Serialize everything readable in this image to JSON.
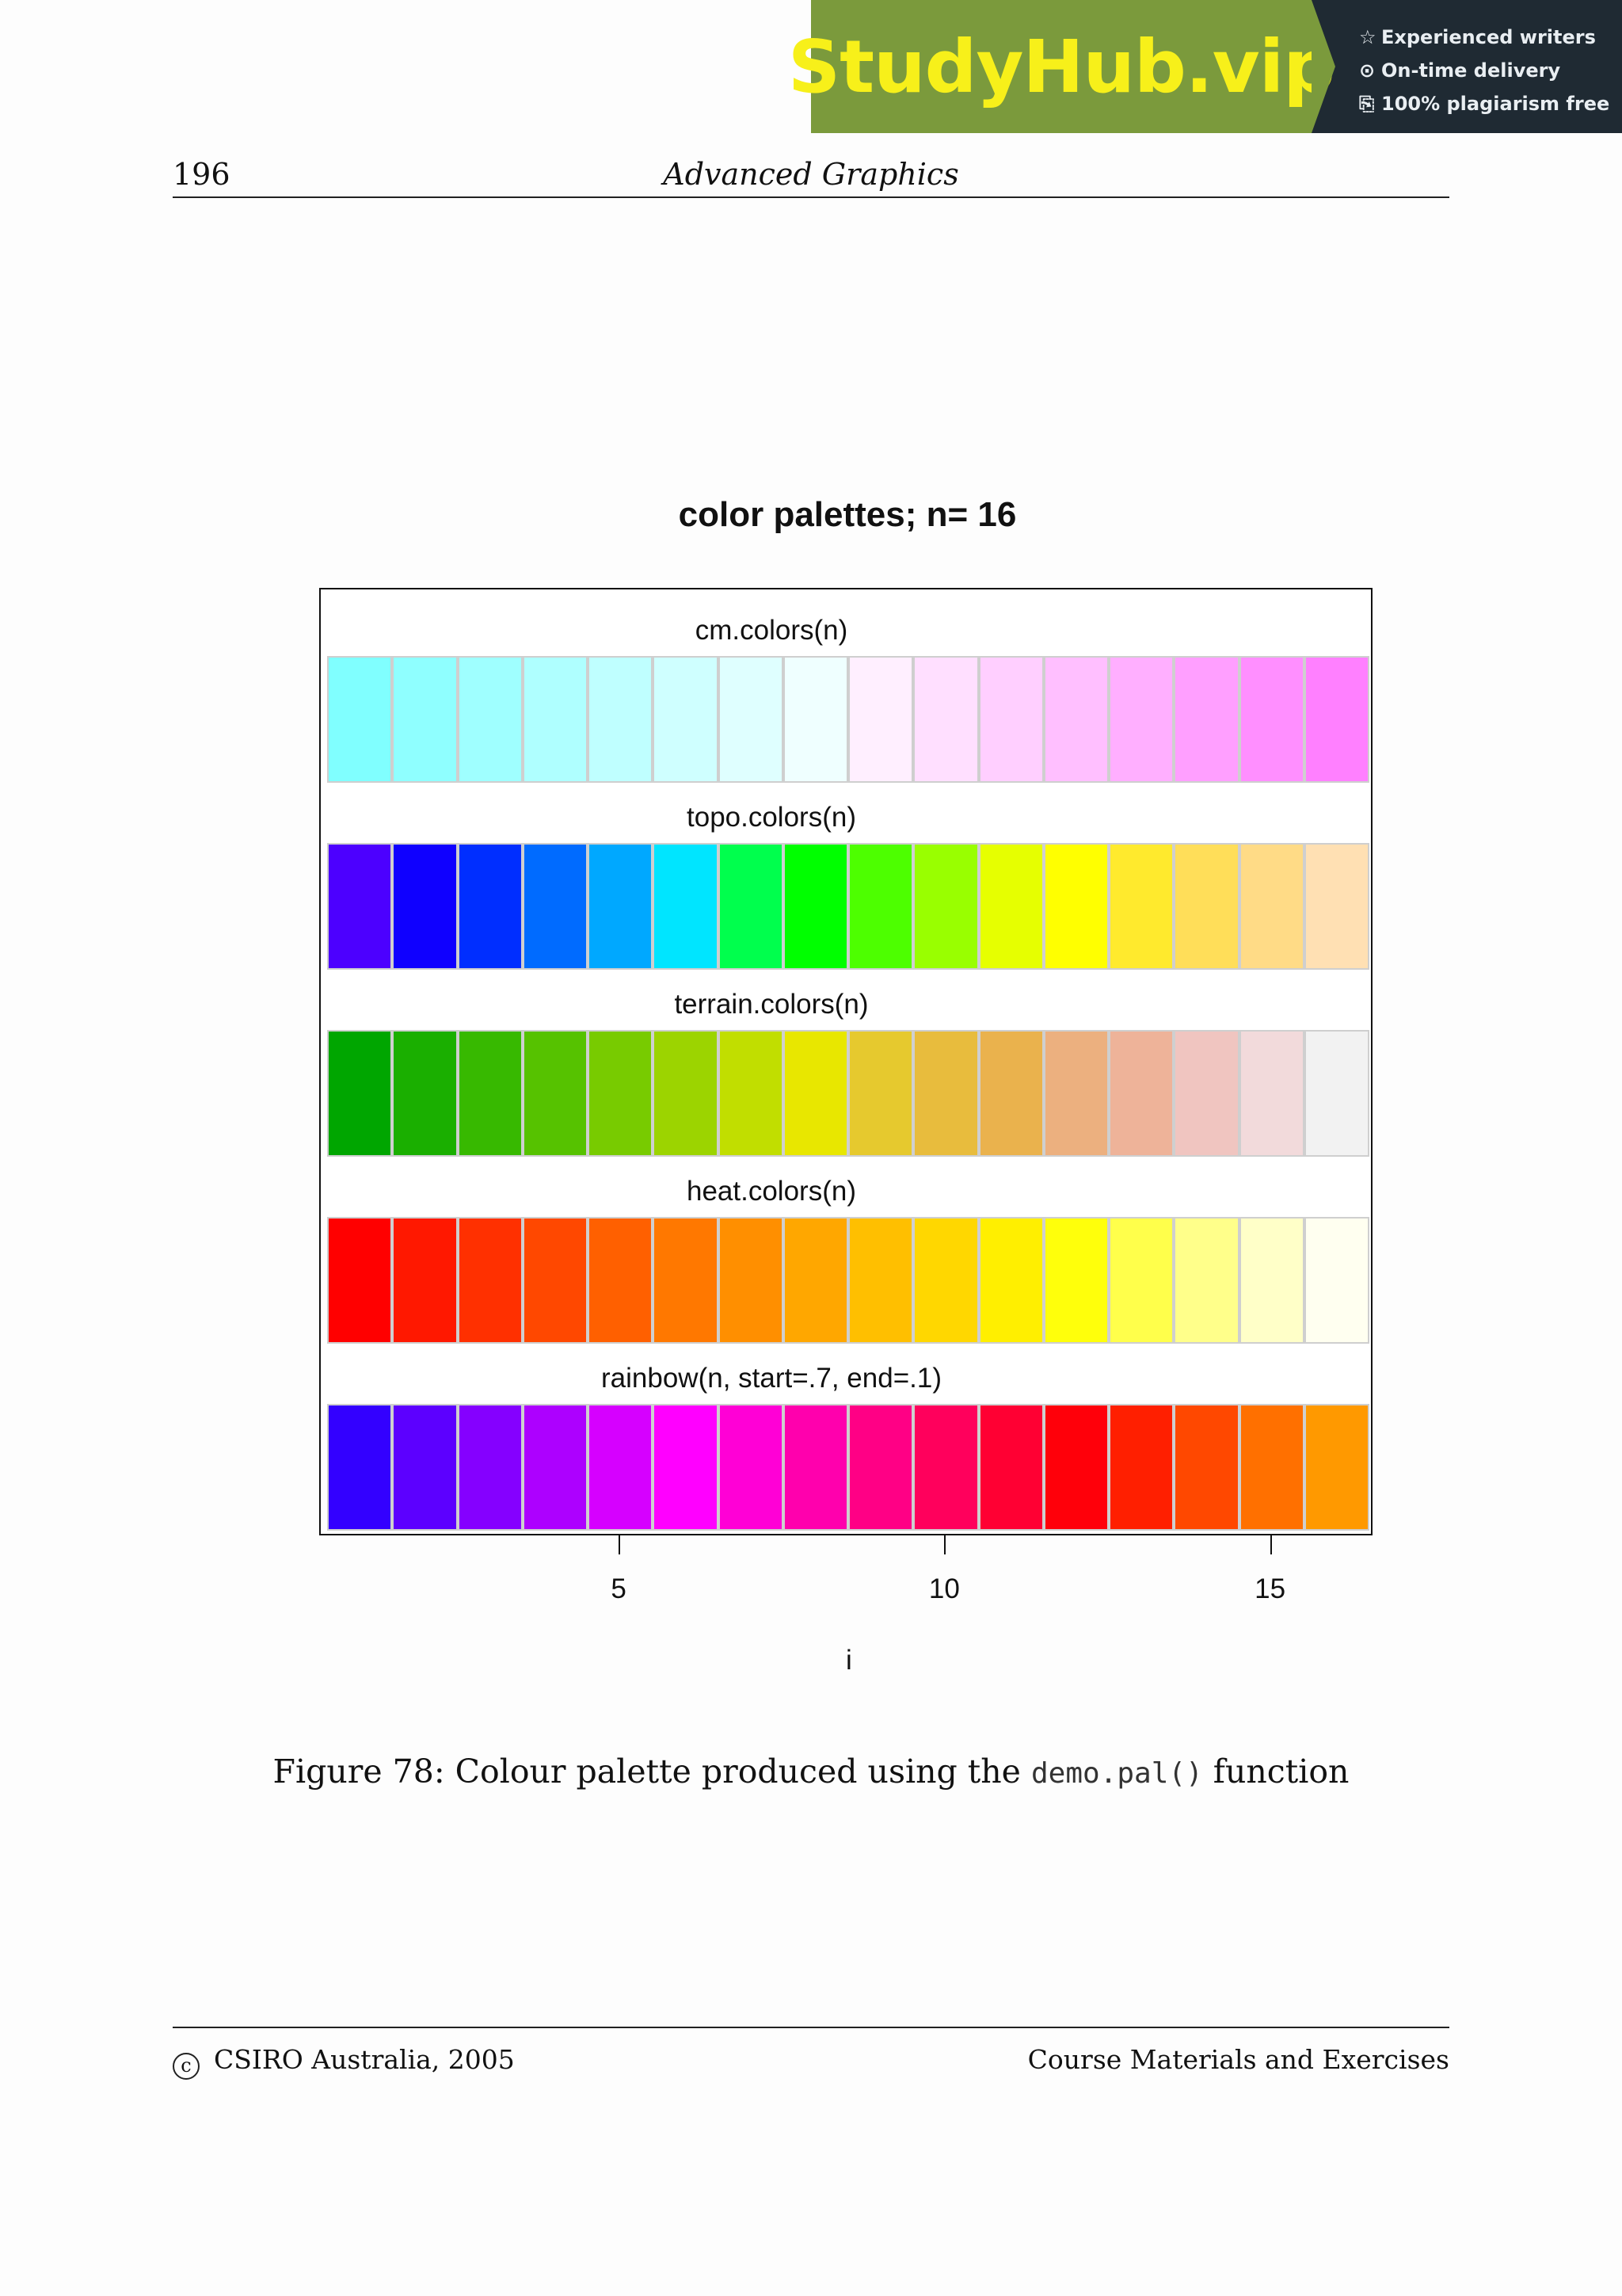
{
  "banner": {
    "logo_text": "StudyHub.vip",
    "features": [
      {
        "icon": "star-icon",
        "glyph": "☆",
        "text": "Experienced writers"
      },
      {
        "icon": "clock-icon",
        "glyph": "⊙",
        "text": "On-time delivery"
      },
      {
        "icon": "document-icon",
        "glyph": "⎘",
        "text": "100% plagiarism free"
      }
    ]
  },
  "header": {
    "page_number": "196",
    "running_title": "Advanced Graphics"
  },
  "chart_data": {
    "type": "heatmap",
    "title": "color palettes;  n= 16",
    "xlabel": "i",
    "n": 16,
    "xticks": [
      5,
      10,
      15
    ],
    "xlim": [
      0.5,
      16.5
    ],
    "palettes": [
      {
        "name": "cm.colors(n)",
        "colors": [
          "#80FFFF",
          "#8FFFFF",
          "#9FFFFF",
          "#AFFFFF",
          "#BFFFFF",
          "#CFFFFF",
          "#DFFFFF",
          "#EFFFFF",
          "#FFEFFF",
          "#FFDFFF",
          "#FFCFFF",
          "#FFBFFF",
          "#FFAFFF",
          "#FF9FFF",
          "#FF8FFF",
          "#FF80FF"
        ]
      },
      {
        "name": "topo.colors(n)",
        "colors": [
          "#4C00FF",
          "#0F00FF",
          "#002EFF",
          "#006BFF",
          "#00A8FF",
          "#00E5FF",
          "#00FF4D",
          "#00FF00",
          "#4DFF00",
          "#99FF00",
          "#E6FF00",
          "#FFFF00",
          "#FFEA2D",
          "#FFDE59",
          "#FFDB86",
          "#FFE0B3"
        ]
      },
      {
        "name": "terrain.colors(n)",
        "colors": [
          "#00A600",
          "#1AAF00",
          "#37B900",
          "#56C200",
          "#78CB00",
          "#9CD400",
          "#C1DE00",
          "#E8E700",
          "#E6C92E",
          "#E8BC3D",
          "#EAB24D",
          "#ECB07F",
          "#EEB399",
          "#F0C5C0",
          "#F2DADB",
          "#F2F2F2"
        ]
      },
      {
        "name": "heat.colors(n)",
        "colors": [
          "#FF0000",
          "#FF1800",
          "#FF3000",
          "#FF4800",
          "#FF6000",
          "#FF7800",
          "#FF8F00",
          "#FFA700",
          "#FFBF00",
          "#FFD700",
          "#FFEF00",
          "#FFFF0B",
          "#FFFF4B",
          "#FFFF8A",
          "#FFFFC8",
          "#FFFFF0"
        ]
      },
      {
        "name": "rainbow(n, start=.7, end=.1)",
        "colors": [
          "#3300FF",
          "#5C00FF",
          "#8500FF",
          "#AD00FF",
          "#D600FF",
          "#FF00FF",
          "#FF00D6",
          "#FF00AD",
          "#FF0085",
          "#FF005C",
          "#FF0033",
          "#FF000A",
          "#FF1F00",
          "#FF4800",
          "#FF7000",
          "#FF9900"
        ]
      }
    ]
  },
  "caption": {
    "prefix": "Figure 78: Colour palette produced using the",
    "code": "demo.pal()",
    "suffix": "function"
  },
  "footer": {
    "copyright_mark": "c",
    "left": "CSIRO Australia, 2005",
    "right": "Course Materials and Exercises"
  }
}
